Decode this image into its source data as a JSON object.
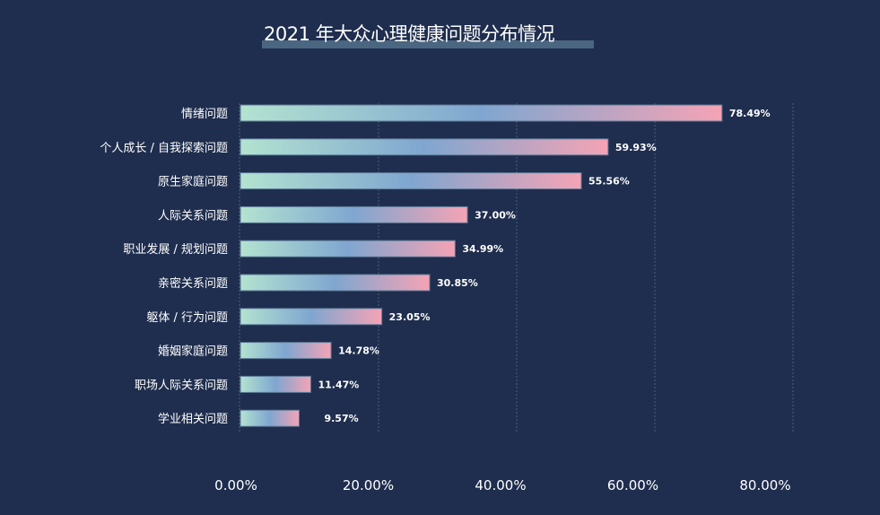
{
  "chart_data": {
    "type": "bar",
    "orientation": "horizontal",
    "title": "2021 年大众心理健康问题分布情况",
    "categories": [
      "情绪问题",
      "个人成长 / 自我探索问题",
      "原生家庭问题",
      "人际关系问题",
      "职业发展 / 规划问题",
      "亲密关系问题",
      "躯体 / 行为问题",
      "婚姻家庭问题",
      "职场人际关系问题",
      "学业相关问题"
    ],
    "values": [
      78.49,
      59.93,
      55.56,
      37.0,
      34.99,
      30.85,
      23.05,
      14.78,
      11.47,
      9.57
    ],
    "value_labels": [
      "78.49%",
      "59.93%",
      "55.56%",
      "37.00%",
      "34.99%",
      "30.85%",
      "23.05%",
      "14.78%",
      "11.47%",
      "9.57%"
    ],
    "xlim": [
      0,
      80
    ],
    "x_ticks": [
      0,
      20,
      40,
      60,
      80
    ],
    "x_tick_labels": [
      "0.00%",
      "20.00%",
      "40.00%",
      "60.00%",
      "80.00%"
    ],
    "xlabel": "",
    "ylabel": "",
    "grid": "vertical dashed",
    "gradient_colors": [
      "#b3e3d0",
      "#7fa6d0",
      "#f5a3b5"
    ]
  }
}
